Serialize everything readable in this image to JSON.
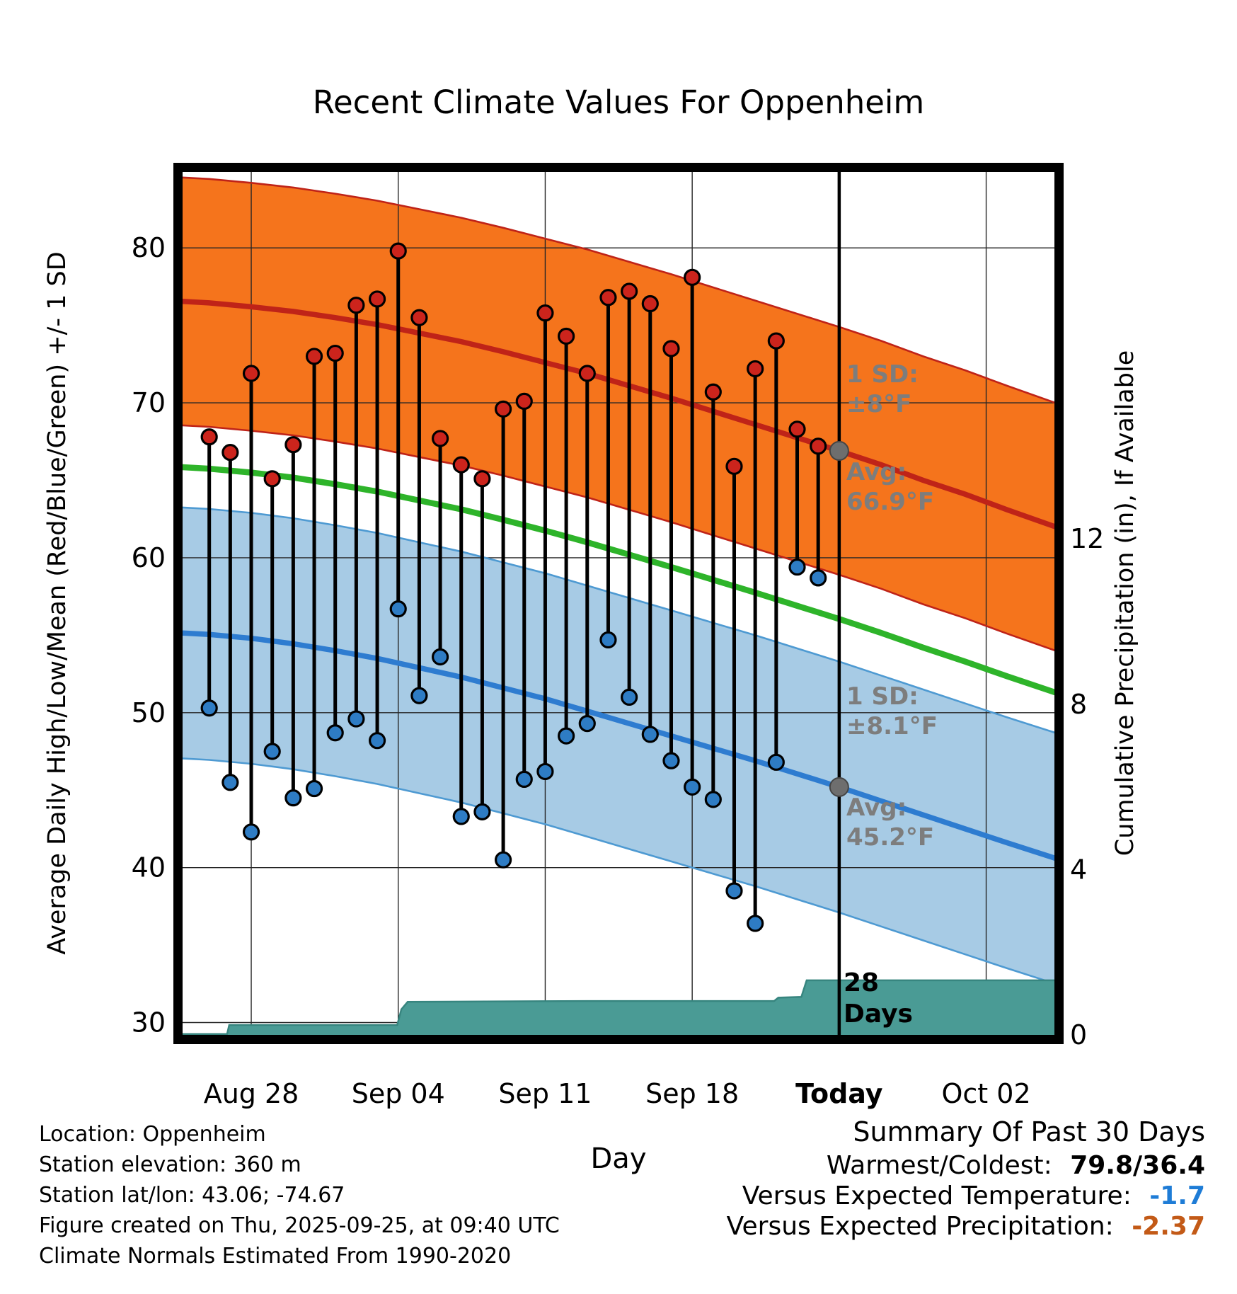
{
  "colors": {
    "band_high_fill": "#f5741c",
    "band_high_edge": "#bf2318",
    "line_high": "#bf2318",
    "marker_high": "#cc241c",
    "band_low_fill": "#a7cbe5",
    "band_low_edge": "#4e9ad2",
    "line_low": "#2e7cd0",
    "marker_low": "#2e7cc4",
    "line_mean": "#2eb42a",
    "precip_fill": "#4a9b95",
    "precip_edge": "#37857f",
    "grid": "#262626",
    "stem": "#000000",
    "today_line": "#000000",
    "avg_dot": "#6e6e6e",
    "annotation_grey": "#7d7d7d",
    "summary_temp_value": "#1e7cd6",
    "summary_precip_value": "#c35a17"
  },
  "chart_data": {
    "type": "line",
    "title": "Recent Climate Values For Oppenheim",
    "xlabel": "Day",
    "ylabel_left": "Average Daily High/Low/Mean (Red/Blue/Green) +/- 1 SD",
    "ylabel_right": "Cumulative Precipitation (in), If Available",
    "ylim_left": [
      29.2,
      84.9
    ],
    "day_range": [
      0.73,
      42.25
    ],
    "today_d": 32,
    "y_ticks_left": [
      30,
      40,
      50,
      60,
      70,
      80
    ],
    "y_ticks_right": [
      0,
      4,
      8,
      12
    ],
    "x_ticks": [
      {
        "d": 4,
        "label": "Aug 28",
        "bold": false
      },
      {
        "d": 11,
        "label": "Sep 04",
        "bold": false
      },
      {
        "d": 18,
        "label": "Sep 11",
        "bold": false
      },
      {
        "d": 25,
        "label": "Sep 18",
        "bold": false
      },
      {
        "d": 32,
        "label": "Today",
        "bold": true
      },
      {
        "d": 39,
        "label": "Oct 02",
        "bold": false
      }
    ],
    "normals": {
      "sd_high": 8.0,
      "sd_low": 8.1,
      "avg_high_today": 66.9,
      "avg_low_today": 45.2,
      "high_avg": [
        [
          0,
          76.6
        ],
        [
          2,
          76.45
        ],
        [
          4,
          76.2
        ],
        [
          6,
          75.9
        ],
        [
          8,
          75.5
        ],
        [
          10,
          75.05
        ],
        [
          12,
          74.5
        ],
        [
          14,
          73.95
        ],
        [
          16,
          73.3
        ],
        [
          18,
          72.6
        ],
        [
          20,
          71.9
        ],
        [
          22,
          71.1
        ],
        [
          24,
          70.3
        ],
        [
          26,
          69.45
        ],
        [
          28,
          68.6
        ],
        [
          30,
          67.75
        ],
        [
          32,
          66.9
        ],
        [
          34,
          66.0
        ],
        [
          36,
          65.0
        ],
        [
          38,
          64.1
        ],
        [
          40,
          63.1
        ],
        [
          42.3,
          62.0
        ]
      ],
      "low_avg": [
        [
          0,
          55.2
        ],
        [
          2,
          55.05
        ],
        [
          4,
          54.8
        ],
        [
          6,
          54.45
        ],
        [
          8,
          54.0
        ],
        [
          10,
          53.5
        ],
        [
          12,
          52.9
        ],
        [
          14,
          52.3
        ],
        [
          16,
          51.6
        ],
        [
          18,
          50.9
        ],
        [
          20,
          50.1
        ],
        [
          22,
          49.3
        ],
        [
          24,
          48.5
        ],
        [
          26,
          47.7
        ],
        [
          28,
          46.9
        ],
        [
          30,
          46.05
        ],
        [
          32,
          45.2
        ],
        [
          34,
          44.3
        ],
        [
          36,
          43.4
        ],
        [
          38,
          42.5
        ],
        [
          40,
          41.6
        ],
        [
          42.3,
          40.6
        ]
      ]
    },
    "daily": [
      {
        "date": "Aug 26",
        "d": 2,
        "high": 67.8,
        "low": 50.3
      },
      {
        "date": "Aug 27",
        "d": 3,
        "high": 66.8,
        "low": 45.5
      },
      {
        "date": "Aug 28",
        "d": 4,
        "high": 71.9,
        "low": 42.3
      },
      {
        "date": "Aug 29",
        "d": 5,
        "high": 65.1,
        "low": 47.5
      },
      {
        "date": "Aug 30",
        "d": 6,
        "high": 67.3,
        "low": 44.5
      },
      {
        "date": "Aug 31",
        "d": 7,
        "high": 73.0,
        "low": 45.1
      },
      {
        "date": "Sep 01",
        "d": 8,
        "high": 73.2,
        "low": 48.7
      },
      {
        "date": "Sep 02",
        "d": 9,
        "high": 76.3,
        "low": 49.6
      },
      {
        "date": "Sep 03",
        "d": 10,
        "high": 76.7,
        "low": 48.2
      },
      {
        "date": "Sep 04",
        "d": 11,
        "high": 79.8,
        "low": 56.7
      },
      {
        "date": "Sep 05",
        "d": 12,
        "high": 75.5,
        "low": 51.1
      },
      {
        "date": "Sep 06",
        "d": 13,
        "high": 67.7,
        "low": 53.6
      },
      {
        "date": "Sep 07",
        "d": 14,
        "high": 66.0,
        "low": 43.3
      },
      {
        "date": "Sep 08",
        "d": 15,
        "high": 65.1,
        "low": 43.6
      },
      {
        "date": "Sep 09",
        "d": 16,
        "high": 69.6,
        "low": 40.5
      },
      {
        "date": "Sep 10",
        "d": 17,
        "high": 70.1,
        "low": 45.7
      },
      {
        "date": "Sep 11",
        "d": 18,
        "high": 75.8,
        "low": 46.2
      },
      {
        "date": "Sep 12",
        "d": 19,
        "high": 74.3,
        "low": 48.5
      },
      {
        "date": "Sep 13",
        "d": 20,
        "high": 71.9,
        "low": 49.3
      },
      {
        "date": "Sep 14",
        "d": 21,
        "high": 76.8,
        "low": 54.7
      },
      {
        "date": "Sep 15",
        "d": 22,
        "high": 77.2,
        "low": 51.0
      },
      {
        "date": "Sep 16",
        "d": 23,
        "high": 76.4,
        "low": 48.6
      },
      {
        "date": "Sep 17",
        "d": 24,
        "high": 73.5,
        "low": 46.9
      },
      {
        "date": "Sep 18",
        "d": 25,
        "high": 78.1,
        "low": 45.2
      },
      {
        "date": "Sep 19",
        "d": 26,
        "high": 70.7,
        "low": 44.4
      },
      {
        "date": "Sep 20",
        "d": 27,
        "high": 65.9,
        "low": 38.5
      },
      {
        "date": "Sep 21",
        "d": 28,
        "high": 72.2,
        "low": 36.4
      },
      {
        "date": "Sep 22",
        "d": 29,
        "high": 74.0,
        "low": 46.8
      },
      {
        "date": "Sep 23",
        "d": 30,
        "high": 68.3,
        "low": 59.4
      },
      {
        "date": "Sep 24",
        "d": 31,
        "high": 67.2,
        "low": 58.7
      }
    ],
    "precip_cumulative_steps": [
      [
        0.73,
        0.02
      ],
      [
        2.85,
        0.02
      ],
      [
        2.95,
        0.24
      ],
      [
        10.95,
        0.24
      ],
      [
        11.15,
        0.62
      ],
      [
        11.45,
        0.8
      ],
      [
        20,
        0.82
      ],
      [
        28.9,
        0.82
      ],
      [
        29.1,
        0.9
      ],
      [
        30.2,
        0.92
      ],
      [
        30.45,
        1.32
      ],
      [
        42.25,
        1.32
      ]
    ],
    "precip_days_available": 28,
    "annotations": {
      "high_sd": [
        "1 SD:",
        "±8°F"
      ],
      "high_avg": [
        "Avg:",
        "66.9°F"
      ],
      "low_sd": [
        "1 SD:",
        "±8.1°F"
      ],
      "low_avg": [
        "Avg:",
        "45.2°F"
      ],
      "days": [
        "28",
        "Days"
      ]
    }
  },
  "footer_left": {
    "location": "Location: Oppenheim",
    "elevation": "Station elevation: 360 m",
    "latlon": "Station lat/lon: 43.06; -74.67",
    "created": "Figure created on Thu, 2025-09-25, at 09:40 UTC",
    "normals": "Climate Normals Estimated From 1990-2020"
  },
  "summary": {
    "title": "Summary Of Past 30 Days",
    "warmest_coldest_label": "Warmest/Coldest:",
    "warmest_coldest_value": "79.8/36.4",
    "vs_temp_label": "Versus Expected Temperature:",
    "vs_temp_value": "-1.7",
    "vs_precip_label": "Versus Expected Precipitation:",
    "vs_precip_value": "-2.37"
  }
}
